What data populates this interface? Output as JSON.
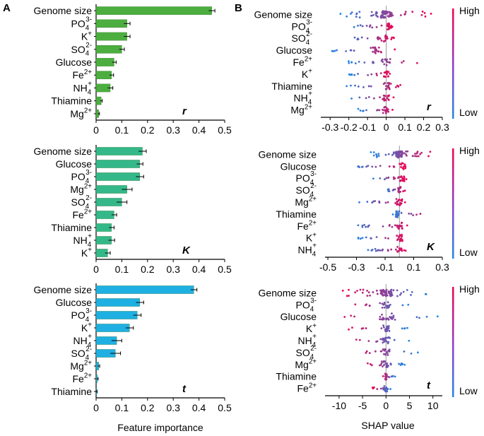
{
  "panel_labels": {
    "a": "A",
    "b": "B"
  },
  "colors": {
    "bar_r": "#4cae3f",
    "bar_k": "#34b88a",
    "bar_t": "#1fb0e3",
    "shap_high": "#f2004f",
    "shap_low": "#1e88e5",
    "axis": "#000000",
    "zero_line": "#999999"
  },
  "chart_data": [
    {
      "type": "bar",
      "orientation": "horizontal",
      "panel": "A",
      "tag": "r",
      "categories": [
        "Genome size",
        "PO4 3-",
        "K+",
        "SO4 2-",
        "Glucose",
        "Fe2+",
        "NH4+",
        "Thiamine",
        "Mg2+"
      ],
      "labels": [
        {
          "base": "Genome size"
        },
        {
          "base": "PO",
          "sub": "4",
          "sup": "3-"
        },
        {
          "base": "K",
          "sup": "+"
        },
        {
          "base": "SO",
          "sub": "4",
          "sup": "2-"
        },
        {
          "base": "Glucose"
        },
        {
          "base": "Fe",
          "sup": "2+"
        },
        {
          "base": "NH",
          "sub": "4",
          "sup": "+"
        },
        {
          "base": "Thiamine"
        },
        {
          "base": "Mg",
          "sup": "2+"
        }
      ],
      "values": [
        0.45,
        0.12,
        0.12,
        0.1,
        0.07,
        0.06,
        0.055,
        0.02,
        0.01
      ],
      "errors": [
        0.012,
        0.012,
        0.012,
        0.01,
        0.008,
        0.008,
        0.01,
        0.004,
        0.003
      ],
      "xlim": [
        0,
        0.5
      ],
      "xticks": [
        "0",
        "0.1",
        "0.2",
        "0.3",
        "0.4",
        "0.5"
      ],
      "xtick_values": [
        0,
        0.1,
        0.2,
        0.3,
        0.4,
        0.5
      ]
    },
    {
      "type": "bar",
      "orientation": "horizontal",
      "panel": "A",
      "tag": "K",
      "categories": [
        "Genome size",
        "Glucose",
        "PO4 3-",
        "Mg2+",
        "SO4 2-",
        "Fe2+",
        "Thiamine",
        "NH4+",
        "K+"
      ],
      "labels": [
        {
          "base": "Genome size"
        },
        {
          "base": "Glucose"
        },
        {
          "base": "PO",
          "sub": "4",
          "sup": "3-"
        },
        {
          "base": "Mg",
          "sup": "2+"
        },
        {
          "base": "SO",
          "sub": "4",
          "sup": "2-"
        },
        {
          "base": "Fe",
          "sup": "2+"
        },
        {
          "base": "Thiamine"
        },
        {
          "base": "NH",
          "sub": "4",
          "sup": "+"
        },
        {
          "base": "K",
          "sup": "+"
        }
      ],
      "values": [
        0.18,
        0.17,
        0.17,
        0.12,
        0.1,
        0.07,
        0.06,
        0.06,
        0.045
      ],
      "errors": [
        0.015,
        0.012,
        0.015,
        0.02,
        0.02,
        0.01,
        0.01,
        0.012,
        0.01
      ],
      "xlim": [
        0,
        0.5
      ],
      "xticks": [
        "0",
        "0.1",
        "0.2",
        "0.3",
        "0.4",
        "0.5"
      ],
      "xtick_values": [
        0,
        0.1,
        0.2,
        0.3,
        0.4,
        0.5
      ]
    },
    {
      "type": "bar",
      "orientation": "horizontal",
      "panel": "A",
      "tag": "t",
      "categories": [
        "Genome size",
        "Glucose",
        "PO4 3-",
        "K+",
        "NH4+",
        "SO4 2-",
        "Mg2+",
        "Fe2+",
        "Thiamine"
      ],
      "labels": [
        {
          "base": "Genome size"
        },
        {
          "base": "Glucose"
        },
        {
          "base": "PO",
          "sub": "4",
          "sup": "3-"
        },
        {
          "base": "K",
          "sup": "+"
        },
        {
          "base": "NH",
          "sub": "4",
          "sup": "+"
        },
        {
          "base": "SO",
          "sub": "4",
          "sup": "2-"
        },
        {
          "base": "Mg",
          "sup": "2+"
        },
        {
          "base": "Fe",
          "sup": "2+"
        },
        {
          "base": "Thiamine"
        }
      ],
      "values": [
        0.38,
        0.17,
        0.16,
        0.13,
        0.08,
        0.075,
        0.01,
        0.005,
        0.002
      ],
      "errors": [
        0.012,
        0.015,
        0.015,
        0.015,
        0.02,
        0.02,
        0.004,
        0.003,
        0.002
      ],
      "xlim": [
        0,
        0.5
      ],
      "xticks": [
        "0",
        "0.1",
        "0.2",
        "0.3",
        "0.4",
        "0.5"
      ],
      "xtick_values": [
        0,
        0.1,
        0.2,
        0.3,
        0.4,
        0.5
      ],
      "xlabel": "Feature importance"
    },
    {
      "type": "scatter",
      "subtype": "shap-beeswarm",
      "panel": "B",
      "tag": "r",
      "categories": [
        "Genome size",
        "PO4 3-",
        "SO4 2-",
        "Glucose",
        "Fe2+",
        "K+",
        "Thiamine",
        "NH4+",
        "Mg2+"
      ],
      "labels": [
        {
          "base": "Genome size"
        },
        {
          "base": "PO",
          "sub": "4",
          "sup": "3-"
        },
        {
          "base": "SO",
          "sub": "4",
          "sup": "2-"
        },
        {
          "base": "Glucose"
        },
        {
          "base": "Fe",
          "sup": "2+"
        },
        {
          "base": "K",
          "sup": "+"
        },
        {
          "base": "Thiamine"
        },
        {
          "base": "NH",
          "sub": "4",
          "sup": "+"
        },
        {
          "base": "Mg",
          "sup": "2+"
        }
      ],
      "xlim": [
        -0.35,
        0.3
      ],
      "xticks": [
        "-0.3",
        "-0.2",
        "-0.1",
        "0",
        "0.1",
        "0.2",
        "0.3"
      ],
      "xtick_values": [
        -0.3,
        -0.2,
        -0.1,
        0,
        0.1,
        0.2,
        0.3
      ],
      "spread": [
        [
          -0.25,
          0.0,
          0.25
        ],
        [
          -0.2,
          0.02,
          0.04
        ],
        [
          -0.22,
          0.0,
          0.05
        ],
        [
          -0.3,
          -0.05,
          0.07
        ],
        [
          -0.22,
          0.0,
          0.2
        ],
        [
          -0.2,
          0.0,
          0.02
        ],
        [
          -0.22,
          0.0,
          0.12
        ],
        [
          -0.2,
          0.0,
          0.05
        ],
        [
          -0.15,
          0.0,
          0.05
        ]
      ],
      "colorbar": {
        "high": "High",
        "low": "Low"
      }
    },
    {
      "type": "scatter",
      "subtype": "shap-beeswarm",
      "panel": "B",
      "tag": "K",
      "categories": [
        "Genome size",
        "Glucose",
        "PO4 3-",
        "SO4 2-",
        "Mg2+",
        "Thiamine",
        "Fe2+",
        "K+",
        "NH4+"
      ],
      "labels": [
        {
          "base": "Genome size"
        },
        {
          "base": "Glucose"
        },
        {
          "base": "PO",
          "sub": "4",
          "sup": "3-"
        },
        {
          "base": "SO",
          "sub": "4",
          "sup": "2-"
        },
        {
          "base": "Mg",
          "sup": "2+"
        },
        {
          "base": "Thiamine"
        },
        {
          "base": "Fe",
          "sup": "2+"
        },
        {
          "base": "K",
          "sup": "+"
        },
        {
          "base": "NH",
          "sub": "4",
          "sup": "+"
        }
      ],
      "xlim": [
        -0.52,
        0.3
      ],
      "xticks": [
        "-0.5",
        "-0.3",
        "-0.1",
        "0.1",
        "0.3"
      ],
      "xtick_values": [
        -0.5,
        -0.3,
        -0.1,
        0.1,
        0.3
      ],
      "spread": [
        [
          -0.2,
          0.0,
          0.25
        ],
        [
          -0.35,
          0.02,
          0.05
        ],
        [
          -0.2,
          0.02,
          0.05
        ],
        [
          -0.1,
          0.0,
          0.05
        ],
        [
          -0.3,
          0.0,
          0.05
        ],
        [
          -0.05,
          -0.02,
          0.2
        ],
        [
          -0.35,
          0.0,
          0.1
        ],
        [
          -0.3,
          0.0,
          0.05
        ],
        [
          -0.25,
          0.0,
          0.05
        ]
      ],
      "colorbar": {
        "high": "High",
        "low": "Low"
      }
    },
    {
      "type": "scatter",
      "subtype": "shap-beeswarm",
      "panel": "B",
      "tag": "t",
      "categories": [
        "Genome size",
        "PO4 3-",
        "Glucose",
        "K+",
        "NH4+",
        "SO4 2-",
        "Mg2+",
        "Thiamine",
        "Fe2+"
      ],
      "labels": [
        {
          "base": "Genome size"
        },
        {
          "base": "PO",
          "sub": "4",
          "sup": "3-"
        },
        {
          "base": "Glucose"
        },
        {
          "base": "K",
          "sup": "+"
        },
        {
          "base": "NH",
          "sub": "4",
          "sup": "+"
        },
        {
          "base": "SO",
          "sub": "4",
          "sup": "2-"
        },
        {
          "base": "Mg",
          "sup": "2+"
        },
        {
          "base": "Thiamine"
        },
        {
          "base": "Fe",
          "sup": "2+"
        }
      ],
      "xlim": [
        -13,
        12
      ],
      "xticks": [
        "-10",
        "-5",
        "0",
        "5",
        "10"
      ],
      "xtick_values": [
        -10,
        -5,
        0,
        5,
        10
      ],
      "xlabel": "SHAP value",
      "spread": [
        [
          -10,
          0,
          10
        ],
        [
          -8,
          0,
          5
        ],
        [
          -12,
          0,
          11
        ],
        [
          -8,
          0,
          5
        ],
        [
          -9,
          0,
          5
        ],
        [
          -7,
          0,
          7
        ],
        [
          -5,
          0,
          4
        ],
        [
          -1,
          0,
          2
        ],
        [
          -3,
          0,
          1
        ]
      ],
      "colorbar": {
        "high": "High",
        "low": "Low"
      }
    }
  ]
}
